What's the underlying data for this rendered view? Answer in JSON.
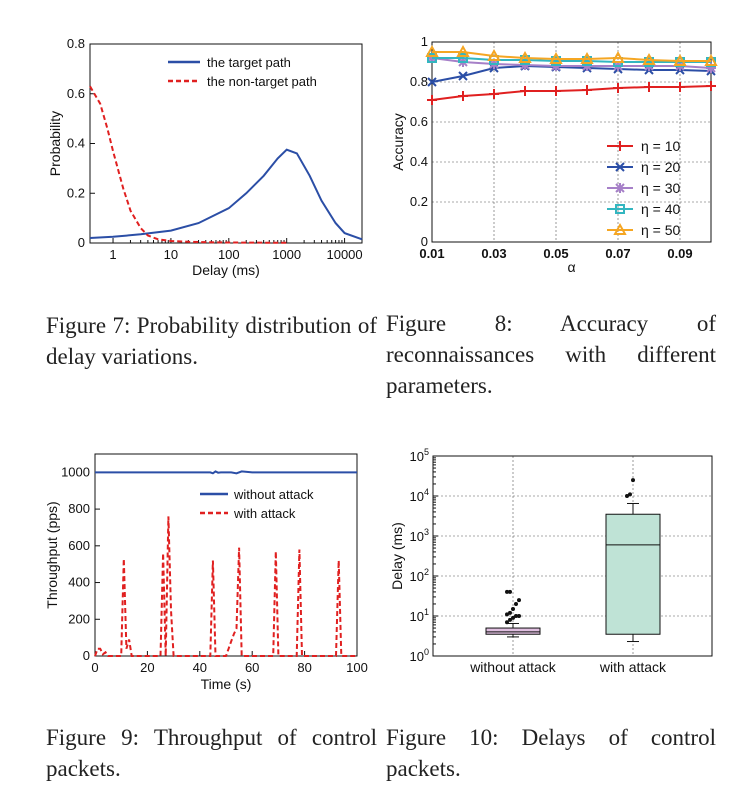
{
  "chart_data": [
    {
      "id": "fig7",
      "type": "line",
      "xlabel": "Delay (ms)",
      "ylabel": "Probability",
      "xscale": "log",
      "xlim": [
        0.4,
        20000
      ],
      "ylim": [
        0,
        0.8
      ],
      "xticks": [
        "1",
        "10",
        "100",
        "1000",
        "10000"
      ],
      "yticks": [
        "0",
        "0.2",
        "0.4",
        "0.6",
        "0.8"
      ],
      "legend": "top-right",
      "grid": false,
      "series": [
        {
          "name": "the target path",
          "style": "solid",
          "color": "#2b4ea6",
          "x": [
            0.4,
            1,
            3,
            10,
            30,
            100,
            200,
            400,
            700,
            1000,
            1500,
            2500,
            4000,
            7000,
            10000,
            20000
          ],
          "y": [
            0.02,
            0.025,
            0.035,
            0.05,
            0.08,
            0.14,
            0.2,
            0.27,
            0.34,
            0.375,
            0.36,
            0.27,
            0.17,
            0.08,
            0.04,
            0.015
          ]
        },
        {
          "name": "the non-target path",
          "style": "dashed",
          "color": "#e02020",
          "x": [
            0.4,
            0.6,
            0.8,
            1,
            1.5,
            2,
            3,
            4,
            6,
            10,
            20,
            50,
            100,
            1000
          ],
          "y": [
            0.63,
            0.56,
            0.46,
            0.37,
            0.22,
            0.13,
            0.06,
            0.03,
            0.015,
            0.008,
            0.005,
            0.003,
            0.002,
            0.001
          ]
        }
      ]
    },
    {
      "id": "fig8",
      "type": "line",
      "xlabel": "α",
      "ylabel": "Accuracy",
      "xlim": [
        0.01,
        0.1
      ],
      "ylim": [
        0,
        1
      ],
      "xticks": [
        "0.01",
        "0.03",
        "0.05",
        "0.07",
        "0.09"
      ],
      "yticks": [
        "0",
        "0.2",
        "0.4",
        "0.6",
        "0.8",
        "1"
      ],
      "legend": "bottom-right",
      "grid": true,
      "x": [
        0.01,
        0.02,
        0.03,
        0.04,
        0.05,
        0.06,
        0.07,
        0.08,
        0.09,
        0.1
      ],
      "series": [
        {
          "name": "η = 10",
          "marker": "plus",
          "color": "#e02020",
          "values": [
            0.71,
            0.73,
            0.74,
            0.755,
            0.755,
            0.76,
            0.77,
            0.775,
            0.775,
            0.78
          ]
        },
        {
          "name": "η = 20",
          "marker": "x",
          "color": "#2b4ea6",
          "values": [
            0.8,
            0.83,
            0.87,
            0.88,
            0.875,
            0.87,
            0.865,
            0.86,
            0.86,
            0.855
          ]
        },
        {
          "name": "η = 30",
          "marker": "star",
          "color": "#a680c8",
          "values": [
            0.92,
            0.9,
            0.89,
            0.885,
            0.88,
            0.88,
            0.88,
            0.88,
            0.88,
            0.87
          ]
        },
        {
          "name": "η = 40",
          "marker": "square",
          "color": "#33b6c0",
          "values": [
            0.92,
            0.92,
            0.91,
            0.91,
            0.905,
            0.905,
            0.9,
            0.9,
            0.9,
            0.9
          ]
        },
        {
          "name": "η = 50",
          "marker": "triangle",
          "color": "#f5a623",
          "values": [
            0.95,
            0.95,
            0.93,
            0.92,
            0.915,
            0.915,
            0.92,
            0.91,
            0.905,
            0.905
          ]
        }
      ]
    },
    {
      "id": "fig9",
      "type": "line",
      "xlabel": "Time (s)",
      "ylabel": "Throughput (pps)",
      "xlim": [
        0,
        100
      ],
      "ylim": [
        0,
        1100
      ],
      "xticks": [
        "0",
        "20",
        "40",
        "60",
        "80",
        "100"
      ],
      "yticks": [
        "0",
        "200",
        "400",
        "600",
        "800",
        "1000"
      ],
      "legend": "top-right",
      "grid": false,
      "series": [
        {
          "name": "without attack",
          "style": "solid",
          "color": "#2b4ea6",
          "x": [
            0,
            10,
            20,
            30,
            40,
            44,
            45,
            46,
            47,
            48,
            50,
            52,
            54,
            56,
            60,
            70,
            80,
            90,
            100
          ],
          "y": [
            1000,
            1000,
            1000,
            1000,
            1000,
            1000,
            995,
            1005,
            998,
            1000,
            1000,
            1000,
            995,
            1005,
            1000,
            1000,
            1000,
            1000,
            1000
          ]
        },
        {
          "name": "with attack",
          "style": "dashed",
          "color": "#e02020",
          "x": [
            0,
            1,
            2,
            3,
            4,
            5,
            6,
            10,
            11,
            12,
            13,
            14,
            25,
            26,
            27,
            28,
            29,
            30,
            44,
            45,
            46,
            50,
            51,
            52,
            53,
            54,
            55,
            56,
            68,
            69,
            70,
            77,
            78,
            79,
            92,
            93,
            94,
            100
          ],
          "y": [
            0,
            40,
            40,
            10,
            20,
            0,
            0,
            0,
            530,
            40,
            90,
            0,
            0,
            560,
            0,
            760,
            250,
            0,
            0,
            520,
            0,
            0,
            40,
            80,
            120,
            150,
            590,
            0,
            0,
            570,
            0,
            0,
            580,
            0,
            0,
            520,
            0,
            0
          ]
        }
      ]
    },
    {
      "id": "fig10",
      "type": "box",
      "ylabel": "Delay (ms)",
      "yscale": "log",
      "ylim": [
        1,
        100000
      ],
      "yticks": [
        "10^0",
        "10^1",
        "10^2",
        "10^3",
        "10^4",
        "10^5"
      ],
      "categories": [
        "without attack",
        "with attack"
      ],
      "grid": true,
      "boxes": [
        {
          "name": "without attack",
          "color": "#e0bfe0",
          "whisker_low": 3.0,
          "q1": 3.5,
          "median": 4.0,
          "q3": 5.0,
          "whisker_high": 6.5,
          "outliers": [
            7,
            8,
            9,
            10,
            10,
            11,
            12,
            15,
            20,
            25,
            40,
            40
          ]
        },
        {
          "name": "with attack",
          "color": "#bfe3d6",
          "whisker_low": 2.3,
          "q1": 3.5,
          "median": 600,
          "q3": 3500,
          "whisker_high": 6500,
          "outliers": [
            10000,
            11000,
            25000
          ]
        }
      ]
    }
  ],
  "captions": {
    "fig7": {
      "label": "Figure 7:",
      "text": "Probability distribution of delay variations."
    },
    "fig8": {
      "label": "Figure 8:",
      "text": "Accuracy of reconnaissances with different parameters."
    },
    "fig9": {
      "label": "Figure 9:",
      "text": "Throughput of control packets."
    },
    "fig10": {
      "label": "Figure 10:",
      "text": "Delays of control packets."
    }
  }
}
